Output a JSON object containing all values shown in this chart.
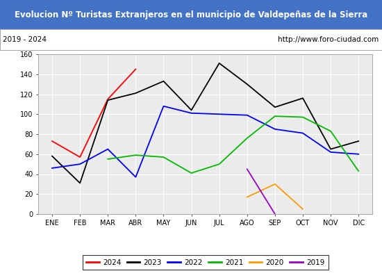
{
  "title": "Evolucion Nº Turistas Extranjeros en el municipio de Valdepeñas de la Sierra",
  "subtitle_left": "2019 - 2024",
  "subtitle_right": "http://www.foro-ciudad.com",
  "title_bg_color": "#4472c4",
  "title_text_color": "#ffffff",
  "subtitle_bg_color": "#ffffff",
  "subtitle_text_color": "#000000",
  "plot_bg_color": "#ebebeb",
  "grid_color": "#ffffff",
  "months": [
    "ENE",
    "FEB",
    "MAR",
    "ABR",
    "MAY",
    "JUN",
    "JUL",
    "AGO",
    "SEP",
    "OCT",
    "NOV",
    "DIC"
  ],
  "series": {
    "2024": {
      "color": "#ff0000",
      "data": [
        73,
        57,
        115,
        145,
        null,
        null,
        null,
        null,
        null,
        null,
        null,
        null
      ]
    },
    "2023": {
      "color": "#000000",
      "data": [
        58,
        31,
        114,
        121,
        133,
        104,
        151,
        130,
        107,
        116,
        65,
        73
      ]
    },
    "2022": {
      "color": "#0000ff",
      "data": [
        46,
        50,
        65,
        37,
        108,
        101,
        100,
        99,
        85,
        81,
        62,
        60
      ]
    },
    "2021": {
      "color": "#00bb00",
      "data": [
        null,
        null,
        55,
        59,
        57,
        41,
        50,
        76,
        98,
        97,
        83,
        43
      ]
    },
    "2020": {
      "color": "#ff9900",
      "data": [
        null,
        null,
        null,
        null,
        null,
        null,
        null,
        17,
        30,
        5,
        null,
        null
      ]
    },
    "2019": {
      "color": "#9900cc",
      "data": [
        null,
        null,
        null,
        null,
        null,
        null,
        null,
        45,
        0,
        null,
        null,
        null
      ]
    }
  },
  "ylim": [
    0,
    160
  ],
  "yticks": [
    0,
    20,
    40,
    60,
    80,
    100,
    120,
    140,
    160
  ],
  "legend_order": [
    "2024",
    "2023",
    "2022",
    "2021",
    "2020",
    "2019"
  ],
  "figsize": [
    5.5,
    4.0
  ],
  "dpi": 100
}
